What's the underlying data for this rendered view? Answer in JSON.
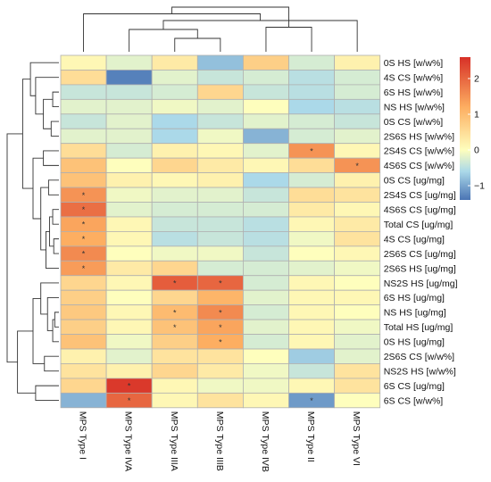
{
  "chart_data": {
    "type": "heatmap",
    "columns": [
      "MPS Type I",
      "MPS Type IVA",
      "MPS Type IIIA",
      "MPS Type IIIB",
      "MPS Type IVB",
      "MPS Type II",
      "MPS Type VI"
    ],
    "rows": [
      "0S HS [w/w%]",
      "4S CS [w/w%]",
      "6S HS [w/w%]",
      "NS HS [w/w%]",
      "0S CS [w/w%]",
      "2S6S HS [w/w%]",
      "2S4S CS [w/w%]",
      "4S6S CS [w/w%]",
      "0S CS [ug/mg]",
      "2S4S CS [ug/mg]",
      "4S6S CS [ug/mg]",
      "Total CS [ug/mg]",
      "4S CS [ug/mg]",
      "2S6S CS [ug/mg]",
      "2S6S HS [ug/mg]",
      "NS2S HS [ug/mg]",
      "6S HS [ug/mg]",
      "NS HS [ug/mg]",
      "Total HS [ug/mg]",
      "0S HS [ug/mg]",
      "2S6S CS [w/w%]",
      "NS2S HS [w/w%]",
      "6S CS [ug/mg]",
      "6S CS [w/w%]"
    ],
    "values": [
      [
        0.1,
        -0.2,
        0.3,
        -0.8,
        0.7,
        -0.3,
        0.2
      ],
      [
        0.5,
        -1.3,
        -0.2,
        -0.4,
        -0.3,
        -0.5,
        -0.3
      ],
      [
        -0.4,
        -0.4,
        -0.3,
        0.6,
        -0.4,
        -0.5,
        -0.3
      ],
      [
        -0.2,
        -0.2,
        -0.1,
        -0.2,
        0.0,
        -0.6,
        -0.5
      ],
      [
        -0.4,
        -0.2,
        -0.6,
        -0.4,
        -0.2,
        -0.3,
        -0.4
      ],
      [
        -0.2,
        -0.2,
        -0.6,
        -0.1,
        -0.9,
        -0.3,
        -0.2
      ],
      [
        0.5,
        -0.3,
        0.2,
        0.1,
        -0.2,
        1.5,
        0.1
      ],
      [
        0.9,
        0.0,
        0.6,
        0.3,
        0.1,
        0.5,
        1.5
      ],
      [
        0.9,
        0.2,
        0.1,
        0.2,
        -0.6,
        -0.3,
        0.2
      ],
      [
        1.5,
        -0.1,
        -0.2,
        -0.2,
        -0.4,
        0.5,
        0.4
      ],
      [
        1.9,
        -0.2,
        -0.3,
        -0.3,
        -0.3,
        0.3,
        0.1
      ],
      [
        1.3,
        0.1,
        -0.4,
        -0.4,
        -0.5,
        0.1,
        0.3
      ],
      [
        1.2,
        0.1,
        -0.5,
        -0.4,
        -0.5,
        -0.1,
        0.4
      ],
      [
        1.6,
        0.0,
        -0.1,
        -0.1,
        -0.4,
        0.0,
        0.1
      ],
      [
        1.4,
        0.3,
        0.6,
        -0.3,
        -0.3,
        -0.2,
        -0.1
      ],
      [
        0.6,
        0.1,
        2.1,
        2.0,
        -0.3,
        0.1,
        0.0
      ],
      [
        0.7,
        0.0,
        0.6,
        1.1,
        -0.2,
        0.1,
        0.1
      ],
      [
        0.8,
        0.1,
        1.0,
        1.6,
        -0.3,
        0.1,
        0.0
      ],
      [
        0.7,
        0.1,
        0.9,
        1.3,
        -0.2,
        0.1,
        -0.1
      ],
      [
        0.9,
        -0.1,
        0.7,
        1.2,
        -0.3,
        0.1,
        -0.2
      ],
      [
        0.2,
        -0.2,
        0.4,
        0.4,
        0.0,
        -0.7,
        -0.2
      ],
      [
        0.4,
        0.2,
        0.6,
        0.3,
        -0.1,
        -0.4,
        0.4
      ],
      [
        0.6,
        2.5,
        0.1,
        -0.1,
        -0.1,
        0.1,
        0.4
      ],
      [
        -0.9,
        2.0,
        0.1,
        0.4,
        0.1,
        -1.1,
        0.0
      ]
    ],
    "significant": [
      [
        6,
        5
      ],
      [
        7,
        6
      ],
      [
        9,
        0
      ],
      [
        10,
        0
      ],
      [
        11,
        0
      ],
      [
        12,
        0
      ],
      [
        13,
        0
      ],
      [
        14,
        0
      ],
      [
        15,
        2
      ],
      [
        15,
        3
      ],
      [
        17,
        2
      ],
      [
        17,
        3
      ],
      [
        18,
        2
      ],
      [
        18,
        3
      ],
      [
        19,
        3
      ],
      [
        22,
        1
      ],
      [
        23,
        1
      ],
      [
        23,
        5
      ]
    ],
    "legend": {
      "ticks": [
        -1,
        0,
        1,
        2
      ],
      "range": [
        -1.4,
        2.6
      ]
    },
    "colors": {
      "low": "#4a74b4",
      "mid_low": "#abd9e9",
      "mid": "#fefebd",
      "mid_high": "#fdae61",
      "high": "#d73027",
      "cell_border": "#b0b0b0"
    },
    "dendrogram_columns": {
      "order": [
        0,
        1,
        2,
        3,
        4,
        5,
        6
      ],
      "merges": [
        [
          2,
          3,
          0.3
        ],
        [
          4,
          5,
          0.55
        ],
        [
          -1,
          1,
          0.5
        ],
        [
          -3,
          6,
          0.7
        ],
        [
          0,
          -4,
          0.85
        ],
        [
          -5,
          -2,
          1.0
        ]
      ]
    },
    "dendrogram_rows": {
      "order": [
        0,
        1,
        2,
        3,
        4,
        5,
        6,
        7,
        8,
        9,
        10,
        11,
        12,
        13,
        14,
        15,
        16,
        17,
        18,
        19,
        20,
        21,
        22,
        23
      ],
      "merges": [
        [
          2,
          3,
          0.12
        ],
        [
          4,
          5,
          0.15
        ],
        [
          -1,
          -2,
          0.3
        ],
        [
          1,
          -3,
          0.45
        ],
        [
          0,
          -4,
          0.55
        ],
        [
          6,
          7,
          0.3
        ],
        [
          8,
          9,
          0.2
        ],
        [
          10,
          11,
          0.12
        ],
        [
          12,
          13,
          0.1
        ],
        [
          -8,
          -9,
          0.18
        ],
        [
          -10,
          14,
          0.25
        ],
        [
          -7,
          -11,
          0.35
        ],
        [
          -6,
          -12,
          0.5
        ],
        [
          -5,
          -13,
          0.7
        ],
        [
          17,
          18,
          0.08
        ],
        [
          -15,
          19,
          0.12
        ],
        [
          16,
          -16,
          0.22
        ],
        [
          15,
          -17,
          0.35
        ],
        [
          20,
          21,
          0.28
        ],
        [
          -18,
          -19,
          0.5
        ],
        [
          22,
          23,
          0.45
        ],
        [
          -20,
          -21,
          0.8
        ],
        [
          -14,
          -22,
          1.0
        ]
      ]
    }
  }
}
